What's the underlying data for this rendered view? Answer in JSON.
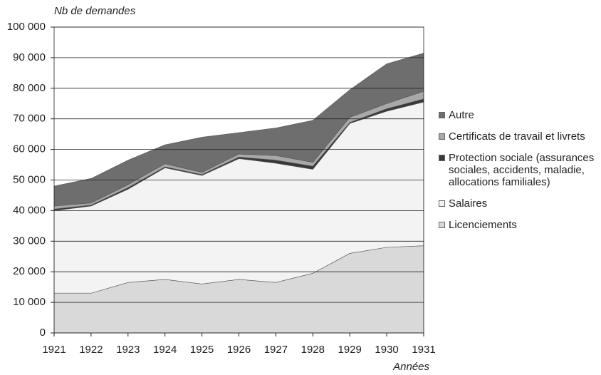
{
  "chart_data": {
    "type": "stacked_area",
    "ylabel": "Nb de demandes",
    "xlabel": "Années",
    "x": [
      1921,
      1922,
      1923,
      1924,
      1925,
      1926,
      1927,
      1928,
      1929,
      1930,
      1931
    ],
    "xlim": [
      1921,
      1931
    ],
    "xticks": [
      1921,
      1922,
      1923,
      1924,
      1925,
      1926,
      1927,
      1928,
      1929,
      1930,
      1931
    ],
    "ylim": [
      0,
      100000
    ],
    "yticks": [
      0,
      {
        "value": 10000,
        "label": "10 000"
      },
      {
        "value": 20000,
        "label": "20 000"
      },
      {
        "value": 30000,
        "label": "30 000"
      },
      {
        "value": 40000,
        "label": "40 000"
      },
      {
        "value": 50000,
        "label": "50 000"
      },
      {
        "value": 60000,
        "label": "60 000"
      },
      {
        "value": 70000,
        "label": "70 000"
      },
      {
        "value": 80000,
        "label": "80 000"
      },
      {
        "value": 90000,
        "label": "90 000"
      },
      {
        "value": 100000,
        "label": "100 000"
      }
    ],
    "grid": true,
    "series": [
      {
        "name": "Licenciements",
        "color": "#d9d9d9",
        "values": [
          13000,
          13000,
          16500,
          17500,
          16000,
          17500,
          16500,
          19500,
          26000,
          28000,
          28500
        ]
      },
      {
        "name": "Salaires",
        "color": "#f3f3f3",
        "values": [
          27000,
          28500,
          30500,
          36500,
          35500,
          39500,
          39000,
          34000,
          42500,
          44500,
          47000
        ]
      },
      {
        "name": "Protection sociale (assurances sociales, accidents, maladie, allocations familiales)",
        "color": "#383838",
        "values": [
          500,
          300,
          500,
          300,
          300,
          500,
          1000,
          1000,
          300,
          800,
          1000
        ]
      },
      {
        "name": "Certificats de travail et livrets",
        "color": "#a8a8a8",
        "values": [
          1000,
          700,
          1000,
          1000,
          700,
          1000,
          1500,
          1300,
          1700,
          1700,
          2500
        ]
      },
      {
        "name": "Autre",
        "color": "#6e6e6e",
        "values": [
          6500,
          8000,
          8000,
          6200,
          11500,
          7000,
          9000,
          13700,
          9000,
          13000,
          12500
        ]
      }
    ]
  }
}
